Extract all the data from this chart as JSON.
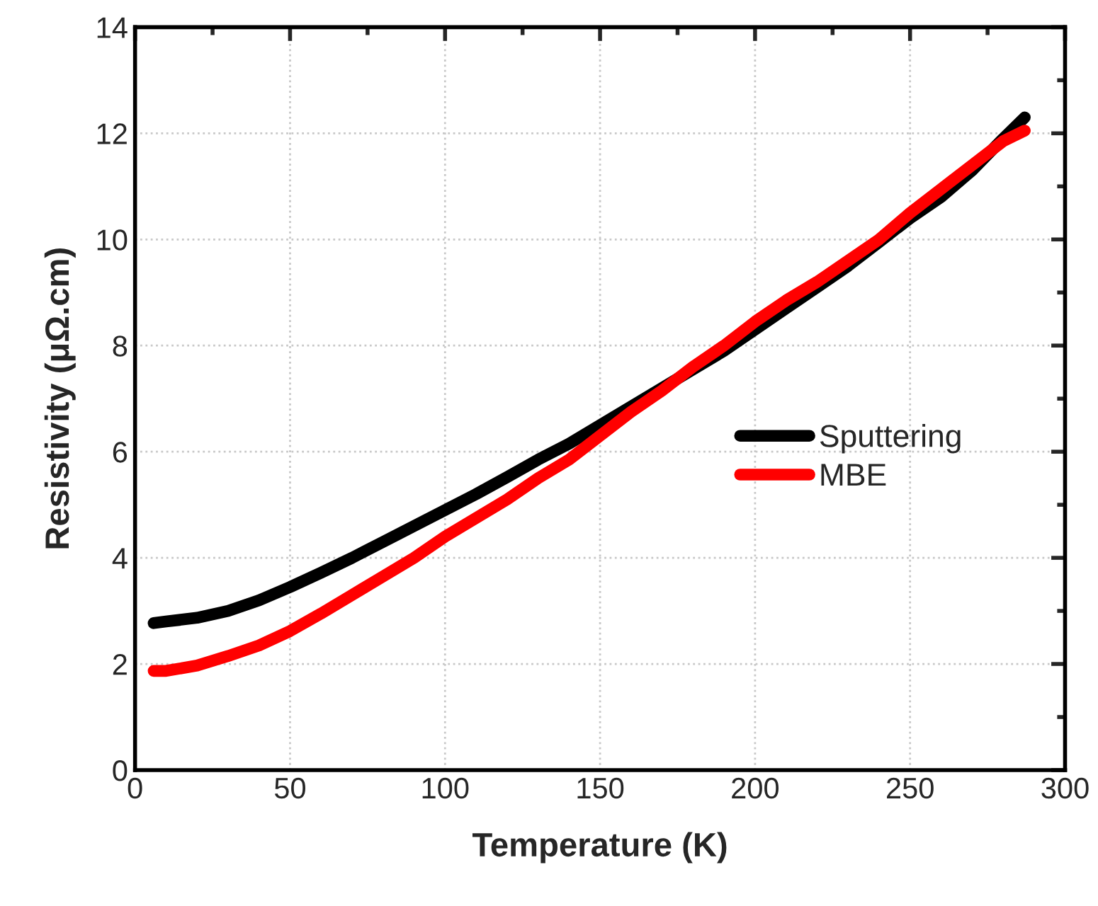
{
  "chart_data": {
    "type": "line",
    "xlabel": "Temperature (K)",
    "ylabel": "Resistivity (μΩ.cm)",
    "xlim": [
      0,
      300
    ],
    "xticks": [
      0,
      50,
      100,
      150,
      200,
      250,
      300
    ],
    "ylim": [
      0,
      14
    ],
    "yticks": [
      0,
      2,
      4,
      6,
      8,
      10,
      12,
      14
    ],
    "grid": true,
    "legend": "right",
    "line_style": "solid",
    "marker": "none",
    "x": [
      6,
      10,
      20,
      30,
      40,
      50,
      60,
      70,
      80,
      90,
      100,
      110,
      120,
      130,
      140,
      150,
      160,
      170,
      180,
      190,
      200,
      210,
      220,
      230,
      240,
      250,
      260,
      270,
      280,
      287
    ],
    "series": [
      {
        "name": "Sputtering",
        "color": "#000000",
        "values": [
          2.77,
          2.8,
          2.87,
          3.0,
          3.2,
          3.45,
          3.72,
          4.0,
          4.3,
          4.6,
          4.9,
          5.2,
          5.52,
          5.85,
          6.15,
          6.5,
          6.85,
          7.2,
          7.55,
          7.9,
          8.3,
          8.7,
          9.1,
          9.5,
          9.95,
          10.4,
          10.8,
          11.3,
          11.9,
          12.3
        ]
      },
      {
        "name": "MBE",
        "color": "#ff0000",
        "values": [
          1.87,
          1.87,
          1.97,
          2.15,
          2.35,
          2.62,
          2.95,
          3.3,
          3.65,
          4.0,
          4.4,
          4.75,
          5.1,
          5.5,
          5.85,
          6.3,
          6.75,
          7.15,
          7.6,
          8.0,
          8.45,
          8.85,
          9.2,
          9.6,
          10.0,
          10.5,
          10.95,
          11.4,
          11.85,
          12.05
        ]
      }
    ]
  }
}
